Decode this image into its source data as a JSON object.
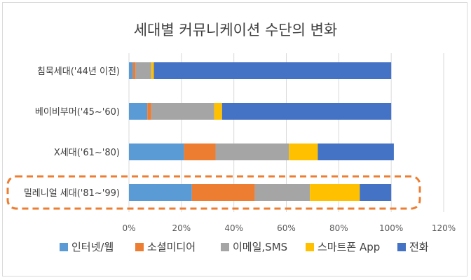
{
  "chart_data": {
    "type": "bar",
    "orientation": "horizontal",
    "stacked": true,
    "title": "세대별 커뮤니케이션 수단의 변화",
    "categories": [
      "침묵세대('44년 이전)",
      "베이비부머('45~'60)",
      "X세대('61~'80)",
      "밀레니얼 세대('81~'99)"
    ],
    "series": [
      {
        "name": "인터넷/웹",
        "color": "#5b9bd5",
        "values": [
          0.015,
          0.07,
          0.21,
          0.24
        ]
      },
      {
        "name": "소셜미디어",
        "color": "#ed7d31",
        "values": [
          0.01,
          0.015,
          0.12,
          0.24
        ]
      },
      {
        "name": "이메일,SMS",
        "color": "#a5a5a5",
        "values": [
          0.06,
          0.24,
          0.28,
          0.21
        ]
      },
      {
        "name": "스마트폰 App",
        "color": "#ffc000",
        "values": [
          0.01,
          0.03,
          0.11,
          0.19
        ]
      },
      {
        "name": "전화",
        "color": "#4472c4",
        "values": [
          0.905,
          0.645,
          0.29,
          0.12
        ]
      }
    ],
    "xlim": [
      0,
      1.2
    ],
    "x_ticks": [
      0,
      0.2,
      0.4,
      0.6,
      0.8,
      1.0,
      1.2
    ],
    "x_tick_labels": [
      "0%",
      "20%",
      "40%",
      "60%",
      "80%",
      "100%",
      "120%"
    ],
    "grid": true,
    "legend_position": "bottom",
    "highlight_category": "밀레니얼 세대('81~'99)",
    "highlight_color": "#ed7d31"
  }
}
